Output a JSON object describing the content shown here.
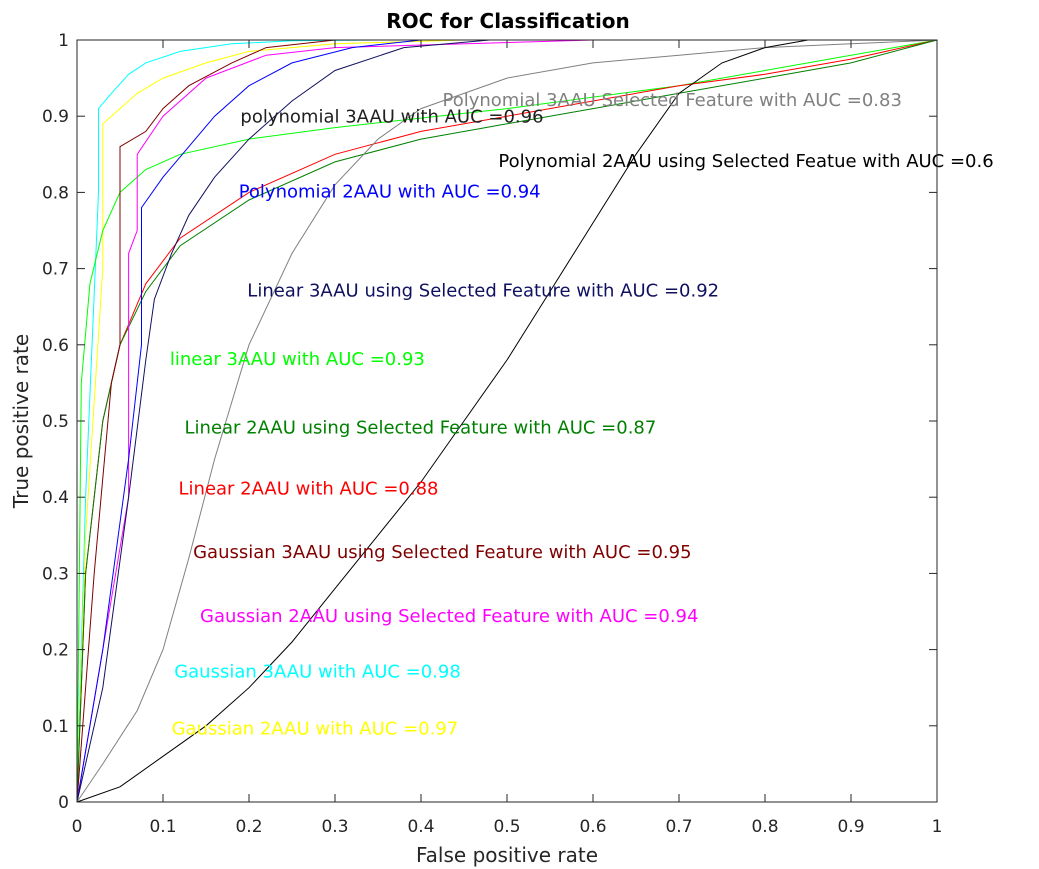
{
  "chart_data": {
    "type": "line",
    "title": "ROC for Classification",
    "xlabel": "False positive rate",
    "ylabel": "True positive rate",
    "xlim": [
      0,
      1
    ],
    "ylim": [
      0,
      1
    ],
    "grid": false,
    "xticks": [
      "0",
      "0.1",
      "0.2",
      "0.3",
      "0.4",
      "0.5",
      "0.6",
      "0.7",
      "0.8",
      "0.9",
      "1"
    ],
    "yticks": [
      "0",
      "0.1",
      "0.2",
      "0.3",
      "0.4",
      "0.5",
      "0.6",
      "0.7",
      "0.8",
      "0.9",
      "1"
    ],
    "series": [
      {
        "color": "#00ffff",
        "x": [
          0,
          0.01,
          0.025,
          0.025,
          0.04,
          0.06,
          0.08,
          0.12,
          0.18,
          0.25,
          0.35,
          1
        ],
        "y": [
          0,
          0.4,
          0.8,
          0.91,
          0.93,
          0.955,
          0.97,
          0.985,
          0.995,
          0.999,
          1,
          1
        ]
      },
      {
        "color": "#ffff00",
        "x": [
          0,
          0.01,
          0.03,
          0.03,
          0.05,
          0.07,
          0.1,
          0.15,
          0.2,
          0.3,
          0.45,
          1
        ],
        "y": [
          0,
          0.35,
          0.7,
          0.89,
          0.91,
          0.93,
          0.95,
          0.97,
          0.985,
          0.995,
          1,
          1
        ]
      },
      {
        "color": "#00ff00",
        "x": [
          0,
          0.005,
          0.015,
          0.03,
          0.05,
          0.08,
          0.12,
          0.2,
          0.3,
          0.5,
          0.7,
          0.85,
          1
        ],
        "y": [
          0,
          0.55,
          0.68,
          0.75,
          0.8,
          0.83,
          0.85,
          0.87,
          0.885,
          0.91,
          0.94,
          0.97,
          1
        ]
      },
      {
        "color": "#ff0000",
        "x": [
          0,
          0.01,
          0.03,
          0.05,
          0.08,
          0.12,
          0.2,
          0.3,
          0.4,
          0.5,
          0.6,
          0.7,
          0.8,
          0.9,
          1
        ],
        "y": [
          0,
          0.3,
          0.5,
          0.6,
          0.68,
          0.74,
          0.8,
          0.85,
          0.88,
          0.9,
          0.92,
          0.94,
          0.955,
          0.975,
          1
        ]
      },
      {
        "color": "#008000",
        "x": [
          0,
          0.01,
          0.03,
          0.05,
          0.08,
          0.12,
          0.2,
          0.3,
          0.4,
          0.5,
          0.6,
          0.7,
          0.8,
          0.9,
          1
        ],
        "y": [
          0,
          0.3,
          0.5,
          0.6,
          0.67,
          0.73,
          0.79,
          0.84,
          0.87,
          0.89,
          0.91,
          0.93,
          0.95,
          0.97,
          1
        ]
      },
      {
        "color": "#800000",
        "x": [
          0,
          0.02,
          0.04,
          0.05,
          0.05,
          0.08,
          0.1,
          0.13,
          0.18,
          0.22,
          0.3,
          1
        ],
        "y": [
          0,
          0.3,
          0.55,
          0.6,
          0.86,
          0.88,
          0.91,
          0.94,
          0.97,
          0.99,
          1,
          1
        ]
      },
      {
        "color": "#ff00ff",
        "x": [
          0,
          0.03,
          0.06,
          0.06,
          0.07,
          0.07,
          0.1,
          0.15,
          0.22,
          0.3,
          0.6,
          1
        ],
        "y": [
          0,
          0.2,
          0.4,
          0.72,
          0.75,
          0.85,
          0.9,
          0.95,
          0.98,
          0.99,
          1,
          1
        ]
      },
      {
        "color": "#0000ff",
        "x": [
          0,
          0.03,
          0.06,
          0.075,
          0.075,
          0.1,
          0.13,
          0.16,
          0.2,
          0.25,
          0.32,
          0.4,
          0.48,
          1
        ],
        "y": [
          0,
          0.2,
          0.45,
          0.6,
          0.78,
          0.82,
          0.86,
          0.9,
          0.94,
          0.97,
          0.99,
          1,
          1,
          1
        ]
      },
      {
        "color": "#101060",
        "x": [
          0,
          0.03,
          0.06,
          0.08,
          0.09,
          0.11,
          0.13,
          0.16,
          0.2,
          0.25,
          0.3,
          0.38,
          0.48,
          1
        ],
        "y": [
          0,
          0.15,
          0.4,
          0.58,
          0.66,
          0.72,
          0.77,
          0.82,
          0.87,
          0.92,
          0.96,
          0.99,
          1,
          1
        ]
      },
      {
        "color": "#808080",
        "x": [
          0,
          0.03,
          0.07,
          0.1,
          0.13,
          0.16,
          0.2,
          0.25,
          0.3,
          0.35,
          0.4,
          0.5,
          0.6,
          0.7,
          0.8,
          0.9,
          1
        ],
        "y": [
          0,
          0.05,
          0.12,
          0.2,
          0.32,
          0.45,
          0.6,
          0.72,
          0.81,
          0.87,
          0.91,
          0.95,
          0.97,
          0.98,
          0.99,
          0.995,
          1
        ]
      },
      {
        "color": "#000000",
        "x": [
          0,
          0.05,
          0.1,
          0.15,
          0.2,
          0.25,
          0.3,
          0.35,
          0.4,
          0.45,
          0.5,
          0.55,
          0.6,
          0.65,
          0.7,
          0.75,
          0.8,
          0.85,
          1
        ],
        "y": [
          0,
          0.02,
          0.06,
          0.1,
          0.15,
          0.21,
          0.28,
          0.35,
          0.42,
          0.5,
          0.58,
          0.67,
          0.76,
          0.85,
          0.93,
          0.97,
          0.99,
          1,
          1
        ]
      }
    ],
    "annotations": [
      {
        "text": "Polynomial 3AAU Selected Feature with AUC =0.83",
        "color": "#808080",
        "x": 0.425,
        "y": 0.92
      },
      {
        "text": "polynomial 3AAU with AUC =0.96",
        "color": "#202020",
        "x": 0.19,
        "y": 0.898
      },
      {
        "text": "Polynomial 2AAU using Selected Featue with AUC =0.6",
        "color": "#000000",
        "x": 0.49,
        "y": 0.84
      },
      {
        "text": "Polynomial 2AAU with AUC =0.94",
        "color": "#0000ff",
        "x": 0.188,
        "y": 0.8
      },
      {
        "text": "Linear 3AAU using Selected Feature with AUC =0.92",
        "color": "#101060",
        "x": 0.198,
        "y": 0.67
      },
      {
        "text": "linear 3AAU with AUC =0.93",
        "color": "#00ff00",
        "x": 0.108,
        "y": 0.58
      },
      {
        "text": "Linear 2AAU using Selected Feature with AUC =0.87",
        "color": "#008000",
        "x": 0.125,
        "y": 0.49
      },
      {
        "text": "Linear 2AAU with AUC =0.88",
        "color": "#ff0000",
        "x": 0.118,
        "y": 0.41
      },
      {
        "text": "Gaussian 3AAU using Selected Feature with AUC =0.95",
        "color": "#800000",
        "x": 0.135,
        "y": 0.327
      },
      {
        "text": "Gaussian 2AAU using Selected Feature with AUC =0.94",
        "color": "#ff00ff",
        "x": 0.143,
        "y": 0.243
      },
      {
        "text": "Gaussian 3AAU with AUC =0.98",
        "color": "#00ffff",
        "x": 0.113,
        "y": 0.17
      },
      {
        "text": "Gaussian 2AAU with AUC =0.97",
        "color": "#ffff00",
        "x": 0.11,
        "y": 0.095
      }
    ]
  }
}
